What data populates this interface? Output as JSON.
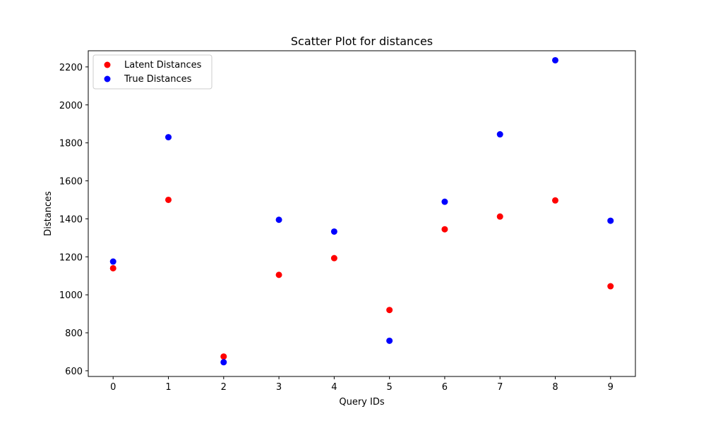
{
  "chart_data": {
    "type": "scatter",
    "title": "Scatter Plot for distances",
    "xlabel": "Query IDs",
    "ylabel": "Distances",
    "x_ticks": [
      0,
      1,
      2,
      3,
      4,
      5,
      6,
      7,
      8,
      9
    ],
    "y_ticks": [
      600,
      800,
      1000,
      1200,
      1400,
      1600,
      1800,
      2000,
      2200
    ],
    "xlim": [
      -0.45,
      9.45
    ],
    "ylim": [
      570,
      2285
    ],
    "grid": false,
    "legend_position": "top-left",
    "series": [
      {
        "name": "Latent Distances",
        "color": "#ff0000",
        "x": [
          0,
          1,
          2,
          3,
          4,
          5,
          6,
          7,
          8,
          9
        ],
        "y": [
          1140,
          1500,
          675,
          1105,
          1193,
          920,
          1345,
          1412,
          1497,
          1045
        ]
      },
      {
        "name": "True Distances",
        "color": "#0000ff",
        "x": [
          0,
          1,
          2,
          3,
          4,
          5,
          6,
          7,
          8,
          9
        ],
        "y": [
          1175,
          1830,
          645,
          1395,
          1333,
          758,
          1490,
          1845,
          2235,
          1390
        ]
      }
    ]
  }
}
